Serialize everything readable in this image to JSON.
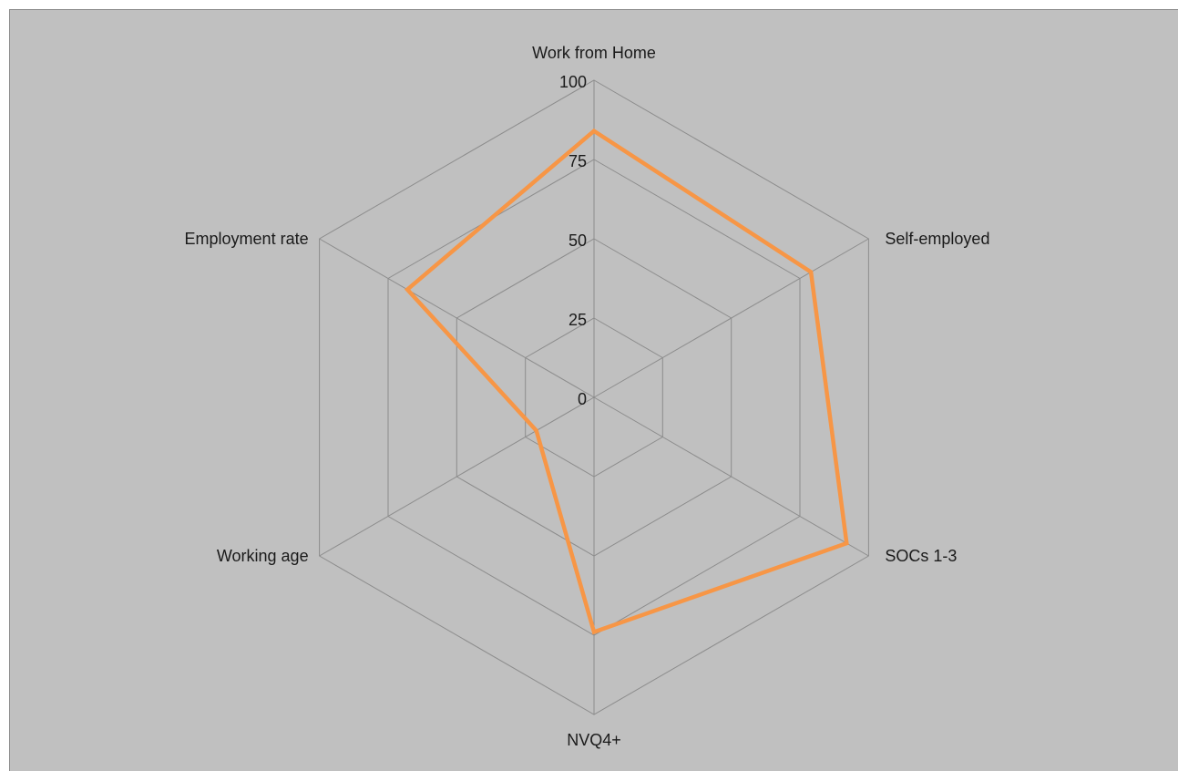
{
  "chart_data": {
    "type": "radar",
    "title": "",
    "categories": [
      "Work from Home",
      "Self-employed",
      "SOCs 1-3",
      "NVQ4+",
      "Working age",
      "Employment rate"
    ],
    "series": [
      {
        "values": [
          84,
          79,
          92,
          74,
          21,
          68
        ],
        "color": "#f79646"
      }
    ],
    "ticks": [
      0,
      25,
      50,
      75,
      100
    ],
    "rlim": [
      0,
      100
    ],
    "grid": true,
    "grid_color": "#8c8c8c",
    "background": "#c0c0c0"
  }
}
